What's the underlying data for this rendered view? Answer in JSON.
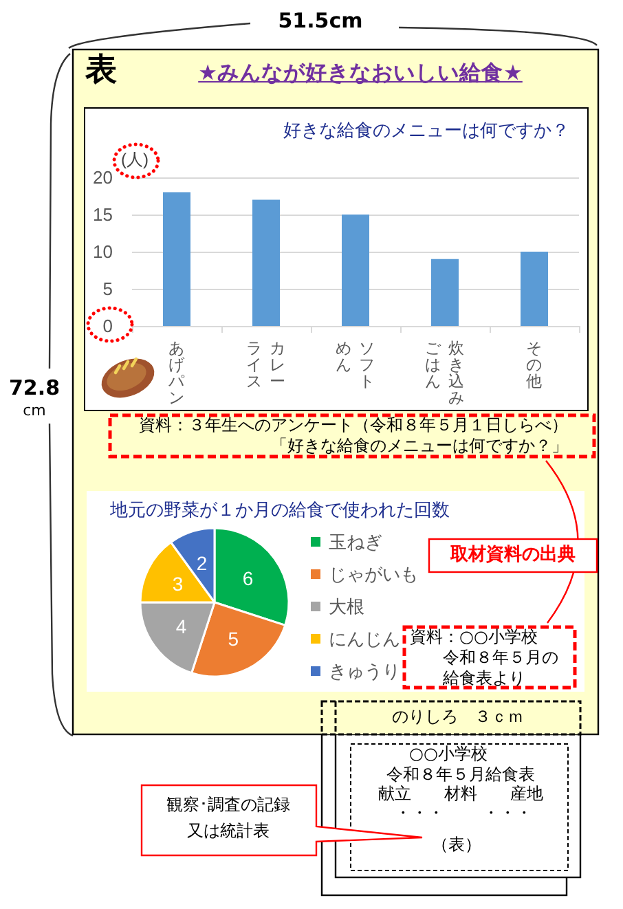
{
  "chart_data": [
    {
      "type": "other",
      "title": "★みんなが好きなおいしい給食★",
      "annotations": [
        "表",
        "51.5cm",
        "72.8cm",
        "取材資料の出典",
        "のりしろ　３ｃｍ",
        "○○小学校",
        "令和８年５月給食表",
        "献立",
        "材料",
        "産地",
        "・・・",
        "・・・",
        "（表）",
        "観察･調査の記録又は統計表"
      ]
    },
    {
      "type": "bar",
      "title": "好きな給食のメニューは何ですか？",
      "ylabel": "(人)",
      "categories": [
        "あげパン",
        "カレーライス",
        "ソフトめん",
        "炊き込みごはん",
        "その他"
      ],
      "values": [
        18,
        17,
        15,
        9,
        10
      ],
      "color": "#5b9bd5",
      "ylim": [
        0,
        20
      ],
      "yticks": [
        0,
        5,
        10,
        15,
        20
      ],
      "grid": "y",
      "annotations": [
        "資料：３年生へのアンケート（令和８年５月１日しらべ）「好きな給食のメニューは何ですか？」"
      ]
    },
    {
      "type": "pie",
      "title": "地元の野菜が１か月の給食で使われた回数",
      "categories": [
        "玉ねぎ",
        "じゃがいも",
        "大根",
        "にんじん",
        "きゅうり"
      ],
      "values": [
        6,
        5,
        4,
        3,
        2
      ],
      "colors": [
        "#00b050",
        "#ed7d31",
        "#a5a5a5",
        "#ffc000",
        "#4472c4"
      ],
      "data_labels": true,
      "legend": "right",
      "annotations": [
        "資料：○○小学校令和８年５月の給食表より"
      ]
    }
  ]
}
